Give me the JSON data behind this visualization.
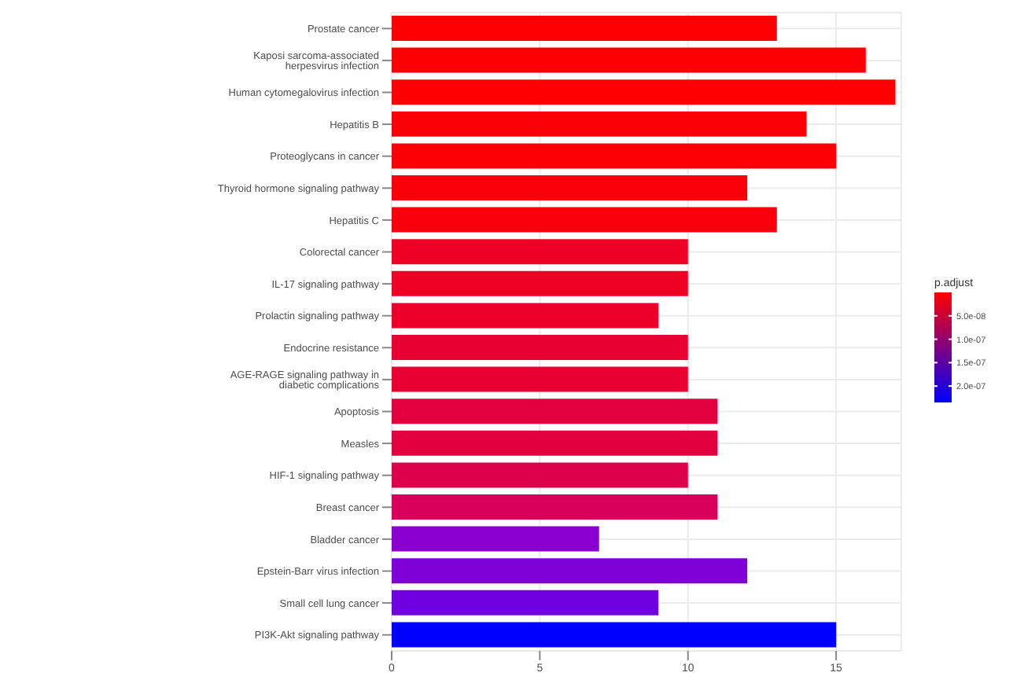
{
  "chart_data": {
    "type": "bar",
    "orientation": "horizontal",
    "categories": [
      "Prostate cancer",
      "Kaposi sarcoma-associated herpesvirus infection",
      "Human cytomegalovirus infection",
      "Hepatitis B",
      "Proteoglycans in cancer",
      "Thyroid hormone signaling pathway",
      "Hepatitis C",
      "Colorectal cancer",
      "IL-17 signaling pathway",
      "Prolactin signaling pathway",
      "Endocrine resistance",
      "AGE-RAGE signaling pathway in diabetic complications",
      "Apoptosis",
      "Measles",
      "HIF-1 signaling pathway",
      "Breast cancer",
      "Bladder cancer",
      "Epstein-Barr virus infection",
      "Small cell lung cancer",
      "PI3K-Akt signaling pathway"
    ],
    "values": [
      13,
      16,
      17,
      14,
      15,
      12,
      13,
      10,
      10,
      9,
      10,
      10,
      11,
      11,
      10,
      11,
      7,
      12,
      9,
      15
    ],
    "colors": [
      "#ff0000",
      "#fd0004",
      "#fe0002",
      "#fb0007",
      "#fc0006",
      "#fa0009",
      "#f9000c",
      "#ee0024",
      "#ee0024",
      "#ec002a",
      "#e80033",
      "#e80033",
      "#e2003f",
      "#e2003f",
      "#dd004a",
      "#d8005a",
      "#8a00d0",
      "#8000d8",
      "#7000e0",
      "#0000ff"
    ],
    "xlim": [
      0,
      17.2
    ],
    "xticks": [
      0,
      5,
      10,
      15
    ],
    "grid": true,
    "clabel": "p.adjust",
    "clim": [
      0,
      2.35e-07
    ],
    "cticks": [
      {
        "value": 5e-08,
        "label": "5.0e-08"
      },
      {
        "value": 1e-07,
        "label": "1.0e-07"
      },
      {
        "value": 1.5e-07,
        "label": "1.5e-07"
      },
      {
        "value": 2e-07,
        "label": "2.0e-07"
      }
    ]
  }
}
